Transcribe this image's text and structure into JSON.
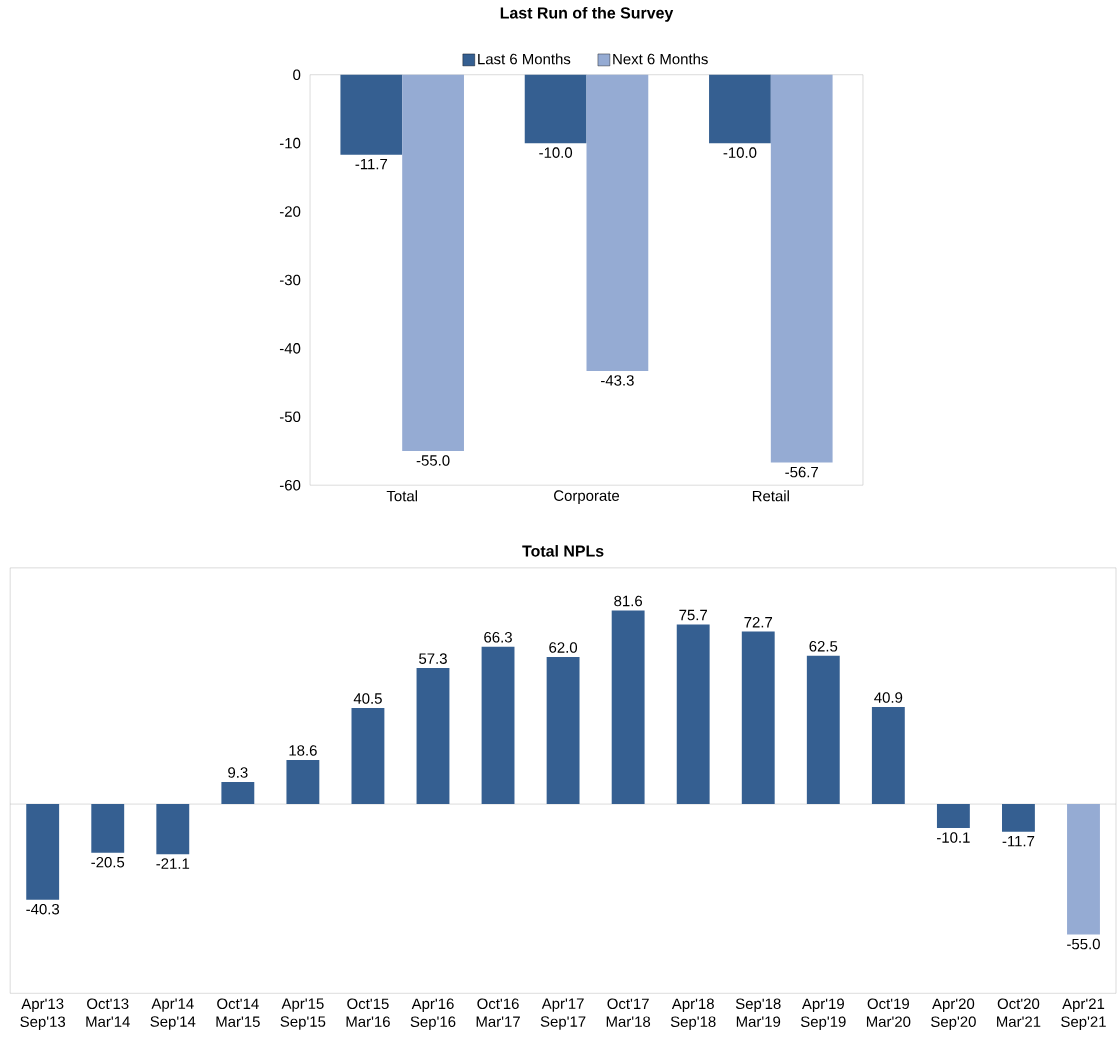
{
  "chart_data": [
    {
      "type": "bar",
      "title": "Last Run of the Survey",
      "categories": [
        "Total",
        "Corporate",
        "Retail"
      ],
      "series": [
        {
          "name": "Last 6 Months",
          "color": "#355f91",
          "values": [
            -11.7,
            -10.0,
            -10.0
          ],
          "value_labels": [
            "-11.7",
            "-10.0",
            "-10.0"
          ]
        },
        {
          "name": "Next 6 Months",
          "color": "#95abd3",
          "values": [
            -55.0,
            -43.3,
            -56.7
          ],
          "value_labels": [
            "-55.0",
            "-43.3",
            "-56.7"
          ]
        }
      ],
      "ylim": [
        -60,
        0
      ],
      "yticks": [
        -60,
        -50,
        -40,
        -30,
        -20,
        -10,
        0
      ],
      "legend": "top"
    },
    {
      "type": "bar",
      "title": "Total NPLs",
      "categories": [
        "Apr'13 Sep'13",
        "Oct'13 Mar'14",
        "Apr'14 Sep'14",
        "Oct'14 Mar'15",
        "Apr'15 Sep'15",
        "Oct'15 Mar'16",
        "Apr'16 Sep'16",
        "Oct'16 Mar'17",
        "Apr'17 Sep'17",
        "Oct'17 Mar'18",
        "Apr'18 Sep'18",
        "Sep'18 Mar'19",
        "Apr'19 Sep'19",
        "Oct'19 Mar'20",
        "Apr'20 Sep'20",
        "Oct'20 Mar'21",
        "Apr'21 Sep'21"
      ],
      "values": [
        -40.3,
        -20.5,
        -21.1,
        9.3,
        18.6,
        40.5,
        57.3,
        66.3,
        62.0,
        81.6,
        75.7,
        72.7,
        62.5,
        40.9,
        -10.1,
        -11.7,
        -55.0
      ],
      "value_labels": [
        "-40.3",
        "-20.5",
        "-21.1",
        "9.3",
        "18.6",
        "40.5",
        "57.3",
        "66.3",
        "62.0",
        "81.6",
        "75.7",
        "72.7",
        "62.5",
        "40.9",
        "-10.1",
        "-11.7",
        "-55.0"
      ],
      "colors": [
        "#355f91",
        "#355f91",
        "#355f91",
        "#355f91",
        "#355f91",
        "#355f91",
        "#355f91",
        "#355f91",
        "#355f91",
        "#355f91",
        "#355f91",
        "#355f91",
        "#355f91",
        "#355f91",
        "#355f91",
        "#355f91",
        "#95abd3"
      ],
      "tick_labels": "x"
    }
  ]
}
